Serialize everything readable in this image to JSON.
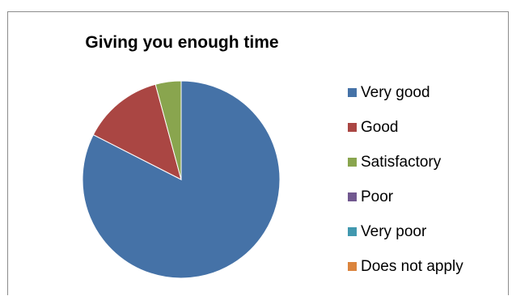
{
  "chart_data": {
    "type": "pie",
    "title": "Giving you enough time",
    "categories": [
      "Very good",
      "Good",
      "Satisfactory",
      "Poor",
      "Very poor",
      "Does not apply"
    ],
    "values": [
      82.5,
      13.3,
      4.2,
      0,
      0,
      0
    ],
    "colors": [
      "#4572A7",
      "#AA4643",
      "#89A54E",
      "#71588F",
      "#4198AF",
      "#DB843D"
    ],
    "legend": {
      "position": "right"
    }
  }
}
